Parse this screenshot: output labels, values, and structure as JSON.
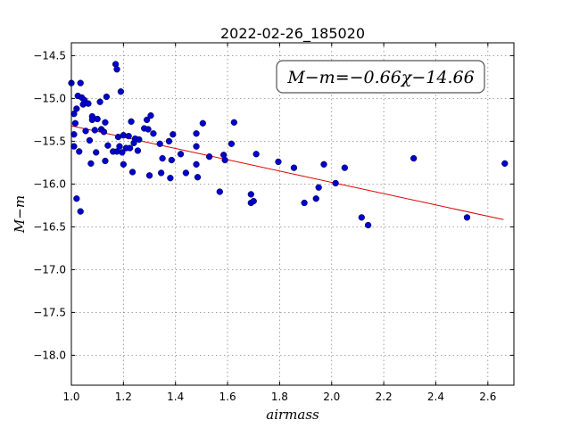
{
  "chart_data": {
    "type": "scatter",
    "title": "2022-02-26_185020",
    "xlabel": "airmass",
    "ylabel": "M−m",
    "xlim": [
      1.0,
      2.7
    ],
    "ylim": [
      -18.35,
      -14.35
    ],
    "y_inverted": true,
    "grid": true,
    "x_ticks": [
      1.0,
      1.2,
      1.4,
      1.6,
      1.8,
      2.0,
      2.2,
      2.4,
      2.6
    ],
    "x_tick_labels": [
      "1.0",
      "1.2",
      "1.4",
      "1.6",
      "1.8",
      "2.0",
      "2.2",
      "2.4",
      "2.6"
    ],
    "y_ticks": [
      -14.5,
      -15.0,
      -15.5,
      -16.0,
      -16.5,
      -17.0,
      -17.5,
      -18.0
    ],
    "y_tick_labels": [
      "−14.5",
      "−15.0",
      "−15.5",
      "−16.0",
      "−16.5",
      "−17.0",
      "−17.5",
      "−18.0"
    ],
    "annotation": "M−m=−0.66χ−14.66",
    "annotation_placement": "top-right",
    "marker_color": "#0000cc",
    "fit_color": "#dd0000",
    "fit": {
      "slope": -0.66,
      "intercept": -14.66,
      "x_range": [
        1.0,
        2.66
      ]
    },
    "series": [
      {
        "points": [
          [
            1.0,
            -14.82
          ],
          [
            1.01,
            -15.18
          ],
          [
            1.01,
            -15.42
          ],
          [
            1.01,
            -15.56
          ],
          [
            1.015,
            -15.29
          ],
          [
            1.02,
            -15.12
          ],
          [
            1.02,
            -16.17
          ],
          [
            1.025,
            -14.97
          ],
          [
            1.03,
            -15.62
          ],
          [
            1.035,
            -14.82
          ],
          [
            1.035,
            -16.32
          ],
          [
            1.04,
            -14.99
          ],
          [
            1.045,
            -15.07
          ],
          [
            1.05,
            -15.02
          ],
          [
            1.055,
            -15.38
          ],
          [
            1.065,
            -15.06
          ],
          [
            1.07,
            -15.49
          ],
          [
            1.075,
            -15.76
          ],
          [
            1.08,
            -15.21
          ],
          [
            1.08,
            -15.25
          ],
          [
            1.09,
            -15.37
          ],
          [
            1.095,
            -15.63
          ],
          [
            1.1,
            -15.24
          ],
          [
            1.11,
            -15.04
          ],
          [
            1.115,
            -15.36
          ],
          [
            1.125,
            -15.39
          ],
          [
            1.13,
            -15.28
          ],
          [
            1.13,
            -15.73
          ],
          [
            1.135,
            -14.98
          ],
          [
            1.14,
            -15.55
          ],
          [
            1.16,
            -15.62
          ],
          [
            1.17,
            -14.6
          ],
          [
            1.175,
            -14.66
          ],
          [
            1.175,
            -15.62
          ],
          [
            1.18,
            -15.45
          ],
          [
            1.185,
            -15.56
          ],
          [
            1.19,
            -14.92
          ],
          [
            1.195,
            -15.63
          ],
          [
            1.2,
            -15.43
          ],
          [
            1.2,
            -15.77
          ],
          [
            1.21,
            -15.58
          ],
          [
            1.22,
            -15.44
          ],
          [
            1.225,
            -15.58
          ],
          [
            1.23,
            -15.27
          ],
          [
            1.235,
            -15.86
          ],
          [
            1.24,
            -15.52
          ],
          [
            1.245,
            -15.47
          ],
          [
            1.255,
            -15.61
          ],
          [
            1.26,
            -15.48
          ],
          [
            1.28,
            -15.35
          ],
          [
            1.29,
            -15.25
          ],
          [
            1.295,
            -15.36
          ],
          [
            1.3,
            -15.9
          ],
          [
            1.305,
            -15.2
          ],
          [
            1.315,
            -15.41
          ],
          [
            1.34,
            -15.53
          ],
          [
            1.345,
            -15.87
          ],
          [
            1.35,
            -15.7
          ],
          [
            1.375,
            -15.5
          ],
          [
            1.38,
            -15.93
          ],
          [
            1.385,
            -15.72
          ],
          [
            1.39,
            -15.42
          ],
          [
            1.42,
            -15.65
          ],
          [
            1.44,
            -15.87
          ],
          [
            1.48,
            -15.41
          ],
          [
            1.48,
            -15.77
          ],
          [
            1.48,
            -15.56
          ],
          [
            1.485,
            -15.92
          ],
          [
            1.505,
            -15.29
          ],
          [
            1.53,
            -15.68
          ],
          [
            1.57,
            -16.09
          ],
          [
            1.585,
            -15.66
          ],
          [
            1.59,
            -15.72
          ],
          [
            1.615,
            -15.53
          ],
          [
            1.625,
            -15.28
          ],
          [
            1.69,
            -16.22
          ],
          [
            1.69,
            -16.12
          ],
          [
            1.7,
            -16.2
          ],
          [
            1.71,
            -15.65
          ],
          [
            1.795,
            -15.74
          ],
          [
            1.855,
            -15.81
          ],
          [
            1.895,
            -16.22
          ],
          [
            1.94,
            -16.17
          ],
          [
            1.95,
            -16.04
          ],
          [
            1.97,
            -15.77
          ],
          [
            2.015,
            -15.99
          ],
          [
            2.05,
            -15.81
          ],
          [
            2.115,
            -16.39
          ],
          [
            2.14,
            -16.48
          ],
          [
            2.315,
            -15.7
          ],
          [
            2.52,
            -16.39
          ],
          [
            2.665,
            -15.76
          ]
        ]
      }
    ]
  }
}
